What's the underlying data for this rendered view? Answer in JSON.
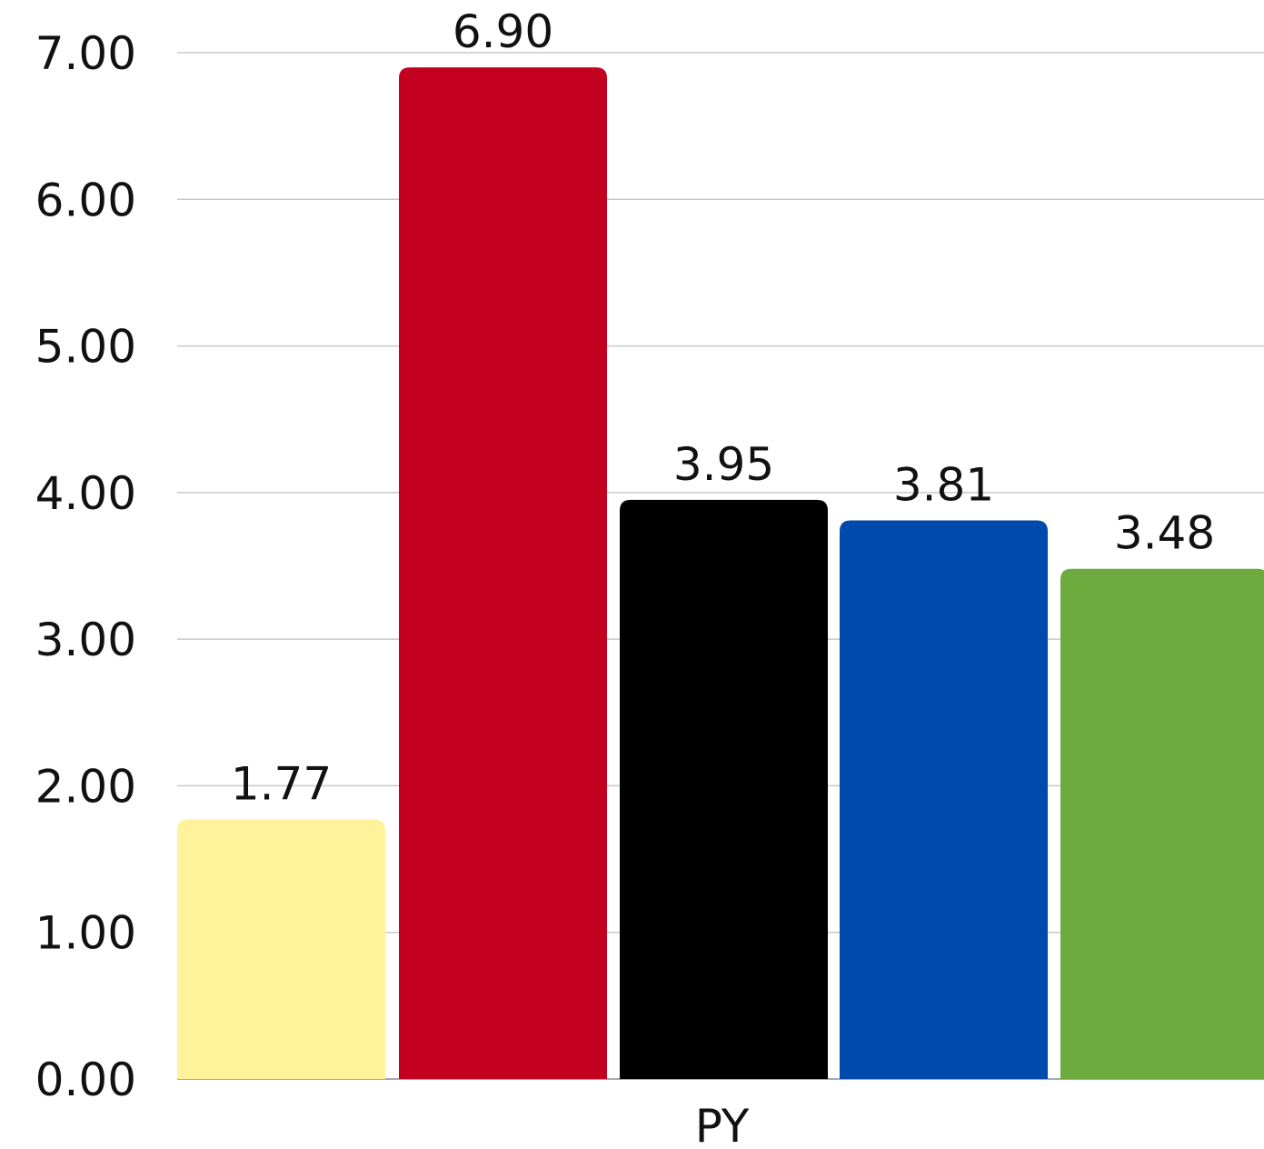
{
  "chart_data": {
    "type": "bar",
    "title": "",
    "xlabel": "",
    "ylabel": "",
    "categories": [
      "PY"
    ],
    "ylim": [
      0,
      7
    ],
    "y_ticks": [
      "0.00",
      "1.00",
      "2.00",
      "3.00",
      "4.00",
      "5.00",
      "6.00",
      "7.00"
    ],
    "grid": true,
    "legend": "none",
    "series": [
      {
        "values": [
          1.77
        ],
        "value_labels": [
          "1.77"
        ],
        "color": "#FFF29A"
      },
      {
        "values": [
          6.9
        ],
        "value_labels": [
          "6.90"
        ],
        "color": "#C3001F"
      },
      {
        "values": [
          3.95
        ],
        "value_labels": [
          "3.95"
        ],
        "color": "#000000"
      },
      {
        "values": [
          3.81
        ],
        "value_labels": [
          "3.81"
        ],
        "color": "#004AAD"
      },
      {
        "values": [
          3.48
        ],
        "value_labels": [
          "3.48"
        ],
        "color": "#6EAB3F"
      }
    ]
  }
}
